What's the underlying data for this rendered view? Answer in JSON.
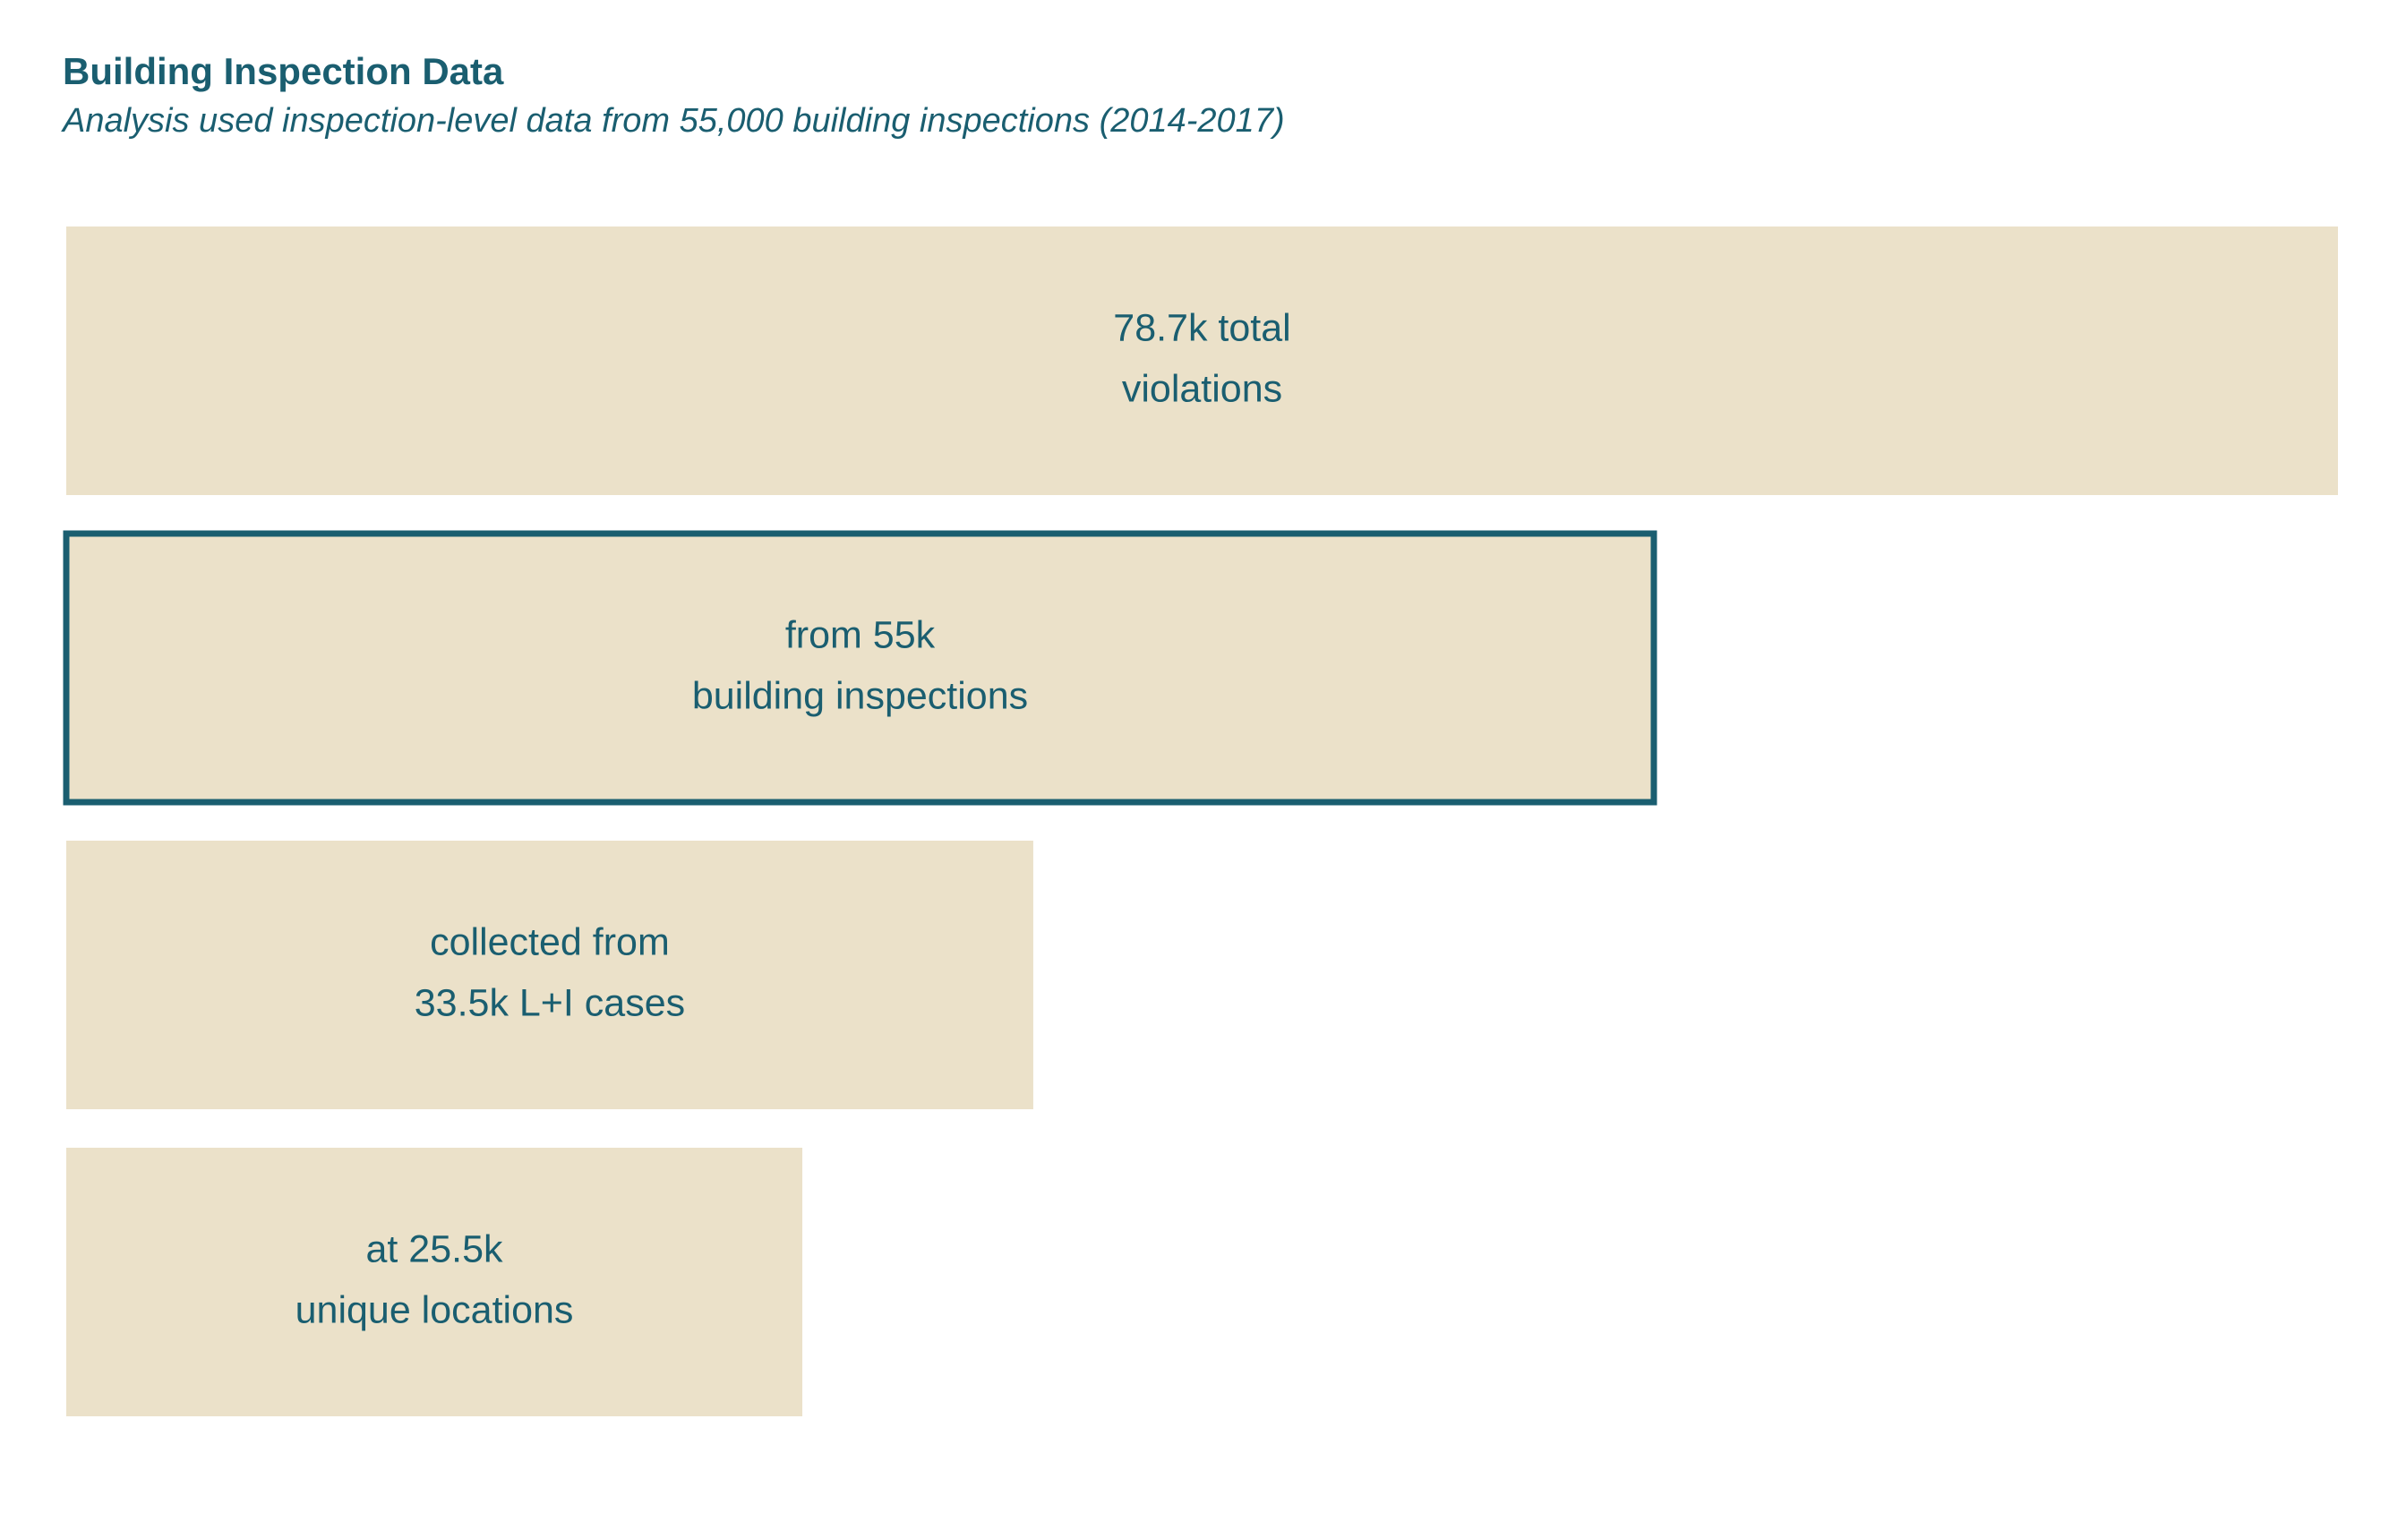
{
  "colors": {
    "bar_fill": "#ebe1c9",
    "text": "#1a5e70",
    "highlight_stroke": "#1a5e70",
    "background": "#ffffff"
  },
  "chart_data": {
    "type": "bar",
    "orientation": "horizontal",
    "title": "Building Inspection Data",
    "subtitle": "Analysis used inspection-level data from 55,000 building inspections (2014-2017)",
    "xlabel": "",
    "ylabel": "",
    "grid": false,
    "legend": "none",
    "xlim": [
      0,
      78700
    ],
    "categories": [
      "violations",
      "building inspections",
      "L+I cases",
      "unique locations"
    ],
    "values": [
      78700,
      55000,
      33500,
      25500
    ],
    "labels": [
      [
        "78.7k total",
        "violations"
      ],
      [
        "from 55k",
        "building inspections"
      ],
      [
        "collected from",
        "33.5k L+I cases"
      ],
      [
        "at 25.5k",
        "unique locations"
      ]
    ],
    "highlighted_index": 1
  }
}
